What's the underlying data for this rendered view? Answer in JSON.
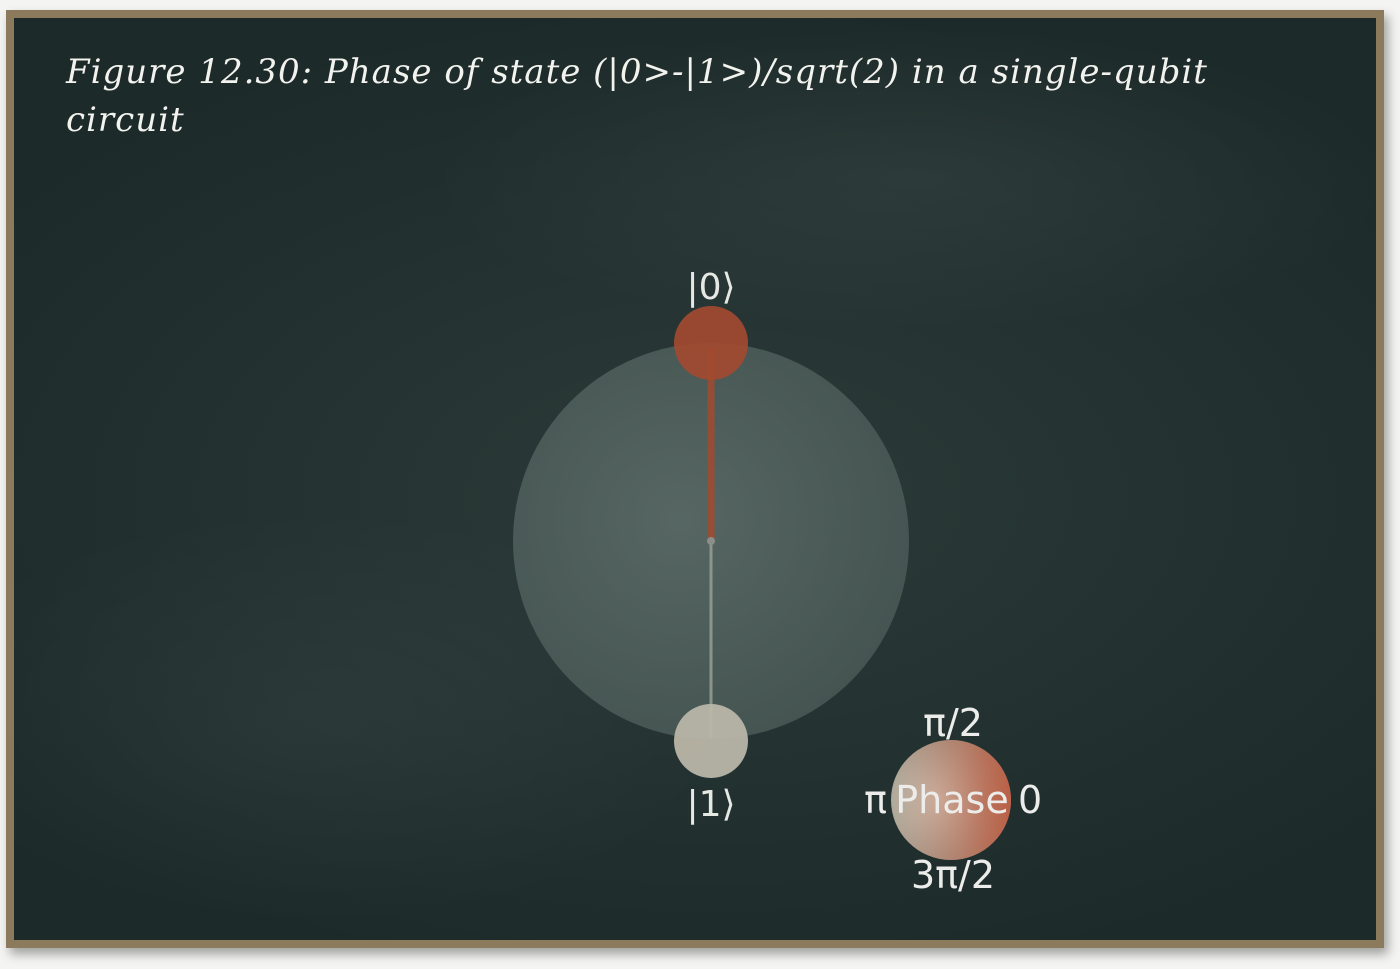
{
  "figure": {
    "title": "Figure 12.30: Phase of state (|0>-|1>)/sqrt(2) in a single-qubit circuit"
  },
  "qsphere": {
    "top_label": "|0⟩",
    "bottom_label": "|1⟩",
    "colors": {
      "sphere": "#5a6a66",
      "state_0": "#a24a30",
      "state_1": "#b9b6a8",
      "line_0": "#a24a30",
      "line_1": "#9aa39c"
    }
  },
  "phase_legend": {
    "label_top": "π/2",
    "label_left": "π",
    "label_center": "Phase",
    "label_right": "0",
    "label_bottom": "3π/2",
    "colors": {
      "wheel_base": "#b8b2a2",
      "wheel_right": "#c0563a"
    }
  }
}
